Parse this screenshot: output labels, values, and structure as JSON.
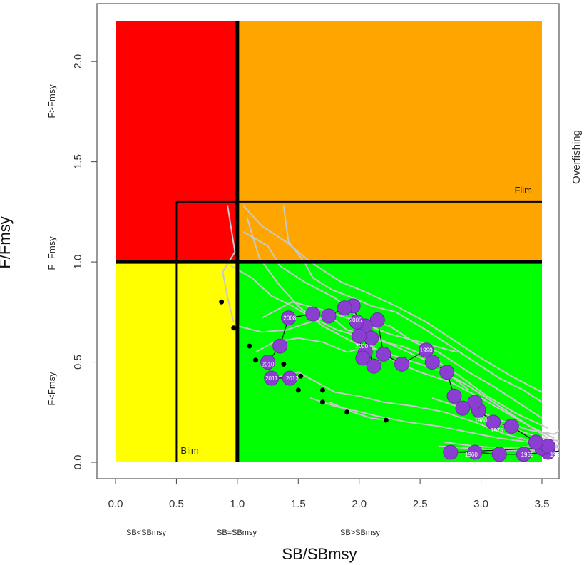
{
  "chart_data": {
    "type": "scatter",
    "title": "",
    "xlabel": "SB/SBmsy",
    "ylabel": "F/Fmsy",
    "xlim": [
      0,
      3.5
    ],
    "ylim": [
      0,
      2.2
    ],
    "x_ticks": [
      "0.0",
      "0.5",
      "1.0",
      "1.5",
      "2.0",
      "2.5",
      "3.0",
      "3.5"
    ],
    "y_ticks": [
      "0.0",
      "0.5",
      "1.0",
      "1.5",
      "2.0"
    ],
    "x_zone_labels": [
      "SB<SBmsy",
      "SB=SBmsy",
      "SB>SBmsy"
    ],
    "y_zone_labels": [
      "F<Fmsy",
      "F=Fmsy",
      "F>Fmsy"
    ],
    "right_label": "Overfishing",
    "zones": [
      {
        "name": "overfished-overfishing",
        "color": "#ff0000",
        "x": [
          0,
          1
        ],
        "y": [
          1,
          2.2
        ]
      },
      {
        "name": "overfishing",
        "color": "#ffa500",
        "x": [
          1,
          3.5
        ],
        "y": [
          1,
          2.2
        ]
      },
      {
        "name": "overfished",
        "color": "#ffff00",
        "x": [
          0,
          1
        ],
        "y": [
          0,
          1
        ]
      },
      {
        "name": "healthy",
        "color": "#00ff00",
        "x": [
          1,
          3.5
        ],
        "y": [
          0,
          1
        ]
      }
    ],
    "reference_points": [
      {
        "label": "Blim",
        "x": 0.5,
        "y_max": 1.3
      },
      {
        "label": "Flim",
        "y": 1.3,
        "x_min": 0.5
      }
    ],
    "trajectory": {
      "name": "",
      "points": [
        {
          "x": 3.7,
          "y": 0.06
        },
        {
          "x": 3.55,
          "y": 0.05
        },
        {
          "x": 3.35,
          "y": 0.04
        },
        {
          "x": 3.15,
          "y": 0.04
        },
        {
          "x": 2.95,
          "y": 0.05
        },
        {
          "x": 2.75,
          "y": 0.05
        },
        {
          "x": 3.5,
          "y": 0.07
        },
        {
          "x": 3.55,
          "y": 0.08
        },
        {
          "x": 3.45,
          "y": 0.1
        },
        {
          "x": 3.25,
          "y": 0.18
        },
        {
          "x": 3.1,
          "y": 0.2
        },
        {
          "x": 2.98,
          "y": 0.26
        },
        {
          "x": 2.95,
          "y": 0.3
        },
        {
          "x": 2.85,
          "y": 0.27
        },
        {
          "x": 2.78,
          "y": 0.33
        },
        {
          "x": 2.72,
          "y": 0.45
        },
        {
          "x": 2.6,
          "y": 0.5
        },
        {
          "x": 2.55,
          "y": 0.56
        },
        {
          "x": 2.35,
          "y": 0.49
        },
        {
          "x": 2.2,
          "y": 0.54
        },
        {
          "x": 2.15,
          "y": 0.71
        },
        {
          "x": 2.05,
          "y": 0.68
        },
        {
          "x": 2.1,
          "y": 0.62
        },
        {
          "x": 2.05,
          "y": 0.55
        },
        {
          "x": 2.0,
          "y": 0.63
        },
        {
          "x": 1.98,
          "y": 0.7
        },
        {
          "x": 2.03,
          "y": 0.52
        },
        {
          "x": 2.12,
          "y": 0.48
        },
        {
          "x": 1.95,
          "y": 0.78
        },
        {
          "x": 1.88,
          "y": 0.77
        },
        {
          "x": 1.75,
          "y": 0.73
        },
        {
          "x": 1.62,
          "y": 0.74
        },
        {
          "x": 1.42,
          "y": 0.72
        },
        {
          "x": 1.35,
          "y": 0.58
        },
        {
          "x": 1.25,
          "y": 0.5
        },
        {
          "x": 1.28,
          "y": 0.42
        },
        {
          "x": 1.43,
          "y": 0.42
        }
      ],
      "point_labels": [
        {
          "x": 1.43,
          "y": 0.72,
          "text": "2008"
        },
        {
          "x": 1.25,
          "y": 0.49,
          "text": "2010"
        },
        {
          "x": 1.28,
          "y": 0.42,
          "text": "2011"
        },
        {
          "x": 1.45,
          "y": 0.42,
          "text": "2012"
        },
        {
          "x": 2.02,
          "y": 0.58,
          "text": "2000"
        },
        {
          "x": 1.97,
          "y": 0.71,
          "text": "2005"
        },
        {
          "x": 2.55,
          "y": 0.56,
          "text": "1990"
        },
        {
          "x": 3.0,
          "y": 0.21,
          "text": "1980"
        },
        {
          "x": 3.13,
          "y": 0.16,
          "text": "1975"
        },
        {
          "x": 2.92,
          "y": 0.04,
          "text": "1960"
        },
        {
          "x": 3.38,
          "y": 0.04,
          "text": "1955"
        },
        {
          "x": 3.62,
          "y": 0.04,
          "text": "1950"
        }
      ]
    },
    "projection_endpoints": [
      {
        "x": 0.87,
        "y": 0.8
      },
      {
        "x": 0.97,
        "y": 0.67
      },
      {
        "x": 1.1,
        "y": 0.58
      },
      {
        "x": 1.15,
        "y": 0.51
      },
      {
        "x": 1.38,
        "y": 0.49
      },
      {
        "x": 1.52,
        "y": 0.43
      },
      {
        "x": 1.5,
        "y": 0.36
      },
      {
        "x": 1.7,
        "y": 0.36
      },
      {
        "x": 1.7,
        "y": 0.3
      },
      {
        "x": 1.9,
        "y": 0.25
      },
      {
        "x": 2.22,
        "y": 0.21
      }
    ],
    "simulated_paths": [
      [
        [
          0.92,
          1.28
        ],
        [
          0.98,
          1.05
        ],
        [
          0.88,
          0.95
        ],
        [
          0.92,
          0.82
        ],
        [
          0.97,
          0.7
        ]
      ],
      [
        [
          1.38,
          1.28
        ],
        [
          1.42,
          1.1
        ],
        [
          1.55,
          1.0
        ],
        [
          1.62,
          0.92
        ],
        [
          1.78,
          0.86
        ],
        [
          1.95,
          0.82
        ],
        [
          2.1,
          0.78
        ],
        [
          2.3,
          0.75
        ],
        [
          2.55,
          0.66
        ],
        [
          2.75,
          0.58
        ],
        [
          2.95,
          0.5
        ],
        [
          3.15,
          0.42
        ],
        [
          3.35,
          0.36
        ],
        [
          3.5,
          0.3
        ]
      ],
      [
        [
          1.05,
          1.15
        ],
        [
          1.25,
          1.08
        ],
        [
          1.35,
          0.98
        ],
        [
          1.55,
          0.9
        ],
        [
          1.8,
          0.82
        ],
        [
          2.0,
          0.72
        ],
        [
          2.25,
          0.68
        ],
        [
          2.45,
          0.6
        ],
        [
          2.65,
          0.55
        ],
        [
          2.9,
          0.45
        ],
        [
          3.1,
          0.38
        ],
        [
          3.3,
          0.3
        ],
        [
          3.5,
          0.22
        ]
      ],
      [
        [
          1.05,
          1.28
        ],
        [
          1.2,
          1.18
        ],
        [
          1.4,
          1.1
        ],
        [
          1.6,
          1.0
        ],
        [
          1.85,
          0.9
        ],
        [
          2.05,
          0.85
        ],
        [
          2.3,
          0.78
        ],
        [
          2.55,
          0.7
        ],
        [
          2.8,
          0.6
        ],
        [
          3.0,
          0.52
        ],
        [
          3.25,
          0.43
        ],
        [
          3.5,
          0.35
        ]
      ],
      [
        [
          1.08,
          1.22
        ],
        [
          1.18,
          1.02
        ],
        [
          1.35,
          0.88
        ],
        [
          1.5,
          0.78
        ],
        [
          1.7,
          0.68
        ],
        [
          1.95,
          0.6
        ],
        [
          2.2,
          0.55
        ],
        [
          2.45,
          0.5
        ],
        [
          2.7,
          0.45
        ],
        [
          2.9,
          0.38
        ],
        [
          3.1,
          0.3
        ],
        [
          3.35,
          0.2
        ],
        [
          3.55,
          0.12
        ]
      ],
      [
        [
          0.95,
          0.98
        ],
        [
          1.12,
          0.92
        ],
        [
          1.28,
          0.83
        ],
        [
          1.45,
          0.78
        ],
        [
          1.62,
          0.72
        ],
        [
          1.82,
          0.66
        ],
        [
          2.05,
          0.62
        ],
        [
          2.35,
          0.58
        ],
        [
          2.6,
          0.52
        ],
        [
          2.85,
          0.42
        ],
        [
          3.05,
          0.33
        ],
        [
          3.3,
          0.24
        ],
        [
          3.55,
          0.17
        ]
      ],
      [
        [
          1.15,
          0.55
        ],
        [
          1.3,
          0.6
        ],
        [
          1.5,
          0.62
        ],
        [
          1.7,
          0.6
        ],
        [
          1.9,
          0.55
        ],
        [
          2.1,
          0.58
        ],
        [
          2.3,
          0.5
        ],
        [
          2.5,
          0.45
        ],
        [
          2.75,
          0.4
        ],
        [
          3.0,
          0.32
        ],
        [
          3.2,
          0.25
        ],
        [
          3.4,
          0.18
        ],
        [
          3.6,
          0.12
        ]
      ],
      [
        [
          1.3,
          0.42
        ],
        [
          1.5,
          0.45
        ],
        [
          1.65,
          0.4
        ],
        [
          1.8,
          0.35
        ],
        [
          2.0,
          0.33
        ],
        [
          2.2,
          0.3
        ],
        [
          2.45,
          0.28
        ],
        [
          2.7,
          0.25
        ],
        [
          2.95,
          0.2
        ],
        [
          3.2,
          0.14
        ],
        [
          3.45,
          0.1
        ],
        [
          3.65,
          0.08
        ]
      ],
      [
        [
          1.6,
          0.32
        ],
        [
          1.8,
          0.28
        ],
        [
          1.95,
          0.26
        ],
        [
          2.15,
          0.23
        ],
        [
          2.4,
          0.2
        ],
        [
          2.65,
          0.18
        ],
        [
          2.9,
          0.15
        ],
        [
          3.15,
          0.12
        ],
        [
          3.4,
          0.1
        ],
        [
          3.65,
          0.08
        ]
      ],
      [
        [
          1.75,
          0.3
        ],
        [
          1.95,
          0.25
        ],
        [
          2.1,
          0.22
        ],
        [
          2.22,
          0.21
        ]
      ],
      [
        [
          2.6,
          0.32
        ],
        [
          2.8,
          0.28
        ],
        [
          3.05,
          0.22
        ],
        [
          3.3,
          0.16
        ],
        [
          3.5,
          0.12
        ],
        [
          3.7,
          0.1
        ]
      ],
      [
        [
          3.0,
          0.25
        ],
        [
          3.2,
          0.2
        ],
        [
          3.4,
          0.16
        ],
        [
          3.6,
          0.14
        ],
        [
          3.7,
          0.18
        ]
      ],
      [
        [
          2.65,
          0.08
        ],
        [
          2.9,
          0.07
        ],
        [
          3.15,
          0.06
        ],
        [
          3.4,
          0.06
        ],
        [
          3.65,
          0.05
        ]
      ],
      [
        [
          2.7,
          0.1
        ],
        [
          2.95,
          0.08
        ],
        [
          3.2,
          0.07
        ],
        [
          3.45,
          0.08
        ],
        [
          3.7,
          0.07
        ]
      ],
      [
        [
          1.0,
          0.68
        ],
        [
          1.2,
          0.65
        ],
        [
          1.4,
          0.66
        ],
        [
          1.6,
          0.7
        ],
        [
          1.8,
          0.74
        ],
        [
          2.0,
          0.7
        ],
        [
          2.25,
          0.64
        ],
        [
          2.5,
          0.6
        ],
        [
          2.8,
          0.55
        ]
      ],
      [
        [
          1.2,
          0.72
        ],
        [
          1.45,
          0.8
        ],
        [
          1.7,
          0.76
        ],
        [
          1.9,
          0.66
        ],
        [
          2.15,
          0.62
        ],
        [
          2.4,
          0.55
        ],
        [
          2.65,
          0.48
        ],
        [
          2.9,
          0.36
        ]
      ]
    ],
    "colors": {
      "trajectory_point": "#8a3fd1",
      "trajectory_point_outline": "#6a2ca8",
      "simulated_path": "#c8c8c8",
      "reference_line": "#000000"
    },
    "grid": false
  }
}
